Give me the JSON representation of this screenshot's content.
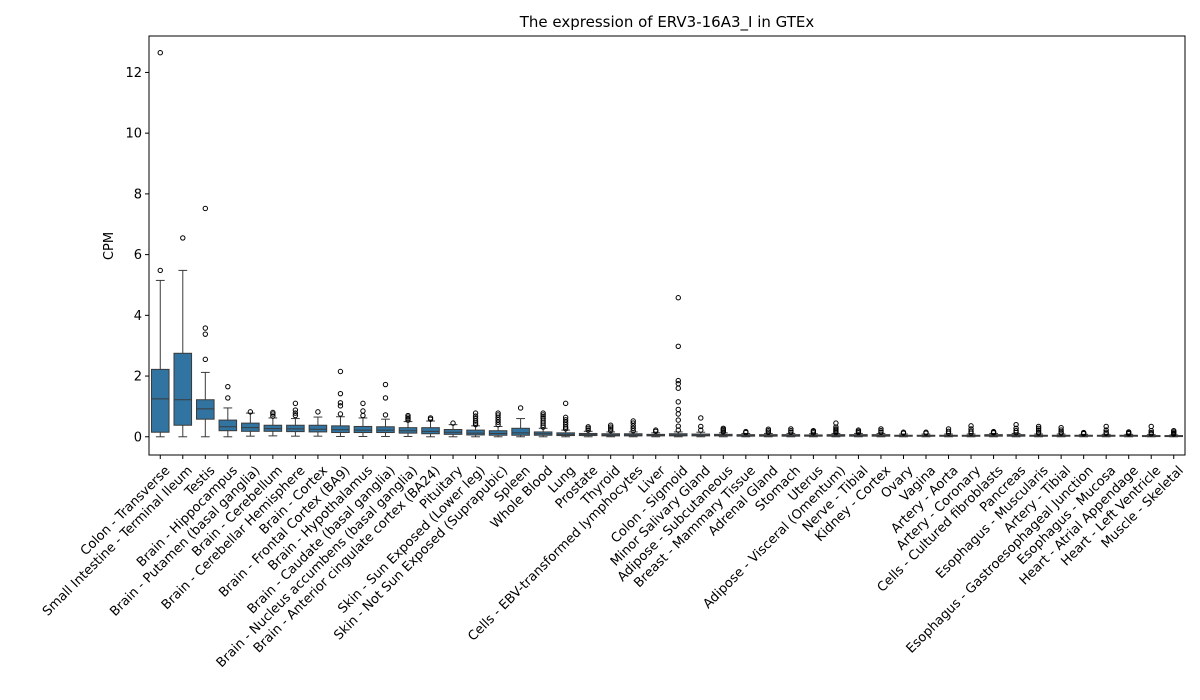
{
  "chart_data": {
    "type": "box",
    "title": "The expression of ERV3-16A3_I in GTEx",
    "xlabel": "",
    "ylabel": "CPM",
    "ylim": [
      -0.6,
      13.2
    ],
    "yticks": [
      0,
      2,
      4,
      6,
      8,
      10,
      12
    ],
    "grid": false,
    "legend": "none",
    "box_color": "#3274a1",
    "line_color": "#3a3a3a",
    "categories": [
      "Colon - Transverse",
      "Small Intestine - Terminal Ileum",
      "Testis",
      "Brain - Hippocampus",
      "Brain - Putamen (basal ganglia)",
      "Brain - Cerebellum",
      "Brain - Cerebellar Hemisphere",
      "Brain - Cortex",
      "Brain - Frontal Cortex (BA9)",
      "Brain - Hypothalamus",
      "Brain - Caudate (basal ganglia)",
      "Brain - Nucleus accumbens (basal ganglia)",
      "Brain - Anterior cingulate cortex (BA24)",
      "Pituitary",
      "Skin - Sun Exposed (Lower leg)",
      "Skin - Not Sun Exposed (Suprapubic)",
      "Spleen",
      "Whole Blood",
      "Lung",
      "Prostate",
      "Thyroid",
      "Cells - EBV-transformed lymphocytes",
      "Liver",
      "Colon - Sigmoid",
      "Minor Salivary Gland",
      "Adipose - Subcutaneous",
      "Breast - Mammary Tissue",
      "Adrenal Gland",
      "Stomach",
      "Uterus",
      "Adipose - Visceral (Omentum)",
      "Nerve - Tibial",
      "Kidney - Cortex",
      "Ovary",
      "Vagina",
      "Artery - Aorta",
      "Artery - Coronary",
      "Cells - Cultured fibroblasts",
      "Pancreas",
      "Esophagus - Muscularis",
      "Artery - Tibial",
      "Esophagus - Gastroesophageal Junction",
      "Esophagus - Mucosa",
      "Heart - Atrial Appendage",
      "Heart - Left Ventricle",
      "Muscle - Skeletal"
    ],
    "boxes": [
      {
        "q1": 0.15,
        "median": 1.25,
        "q3": 2.22,
        "whislo": 0.0,
        "whishi": 5.15,
        "fliers": [
          5.48,
          12.65
        ]
      },
      {
        "q1": 0.38,
        "median": 1.22,
        "q3": 2.75,
        "whislo": 0.0,
        "whishi": 5.48,
        "fliers": [
          6.55
        ]
      },
      {
        "q1": 0.58,
        "median": 0.92,
        "q3": 1.22,
        "whislo": 0.0,
        "whishi": 2.12,
        "fliers": [
          2.55,
          3.38,
          3.58,
          7.52
        ]
      },
      {
        "q1": 0.2,
        "median": 0.33,
        "q3": 0.55,
        "whislo": 0.0,
        "whishi": 0.95,
        "fliers": [
          1.28,
          1.65
        ]
      },
      {
        "q1": 0.18,
        "median": 0.3,
        "q3": 0.45,
        "whislo": 0.02,
        "whishi": 0.78,
        "fliers": [
          0.82
        ]
      },
      {
        "q1": 0.18,
        "median": 0.27,
        "q3": 0.38,
        "whislo": 0.03,
        "whishi": 0.62,
        "fliers": [
          0.68,
          0.75,
          0.8
        ]
      },
      {
        "q1": 0.17,
        "median": 0.26,
        "q3": 0.38,
        "whislo": 0.02,
        "whishi": 0.6,
        "fliers": [
          0.7,
          0.78,
          0.88,
          1.1
        ]
      },
      {
        "q1": 0.16,
        "median": 0.25,
        "q3": 0.38,
        "whislo": 0.02,
        "whishi": 0.65,
        "fliers": [
          0.82
        ]
      },
      {
        "q1": 0.14,
        "median": 0.23,
        "q3": 0.36,
        "whislo": 0.01,
        "whishi": 0.66,
        "fliers": [
          0.75,
          1.02,
          1.12,
          1.42,
          2.15
        ]
      },
      {
        "q1": 0.14,
        "median": 0.22,
        "q3": 0.34,
        "whislo": 0.01,
        "whishi": 0.62,
        "fliers": [
          0.7,
          0.85,
          1.1
        ]
      },
      {
        "q1": 0.14,
        "median": 0.22,
        "q3": 0.33,
        "whislo": 0.01,
        "whishi": 0.58,
        "fliers": [
          0.72,
          1.28,
          1.72
        ]
      },
      {
        "q1": 0.12,
        "median": 0.2,
        "q3": 0.3,
        "whislo": 0.01,
        "whishi": 0.5,
        "fliers": [
          0.55,
          0.6,
          0.65,
          0.7
        ]
      },
      {
        "q1": 0.1,
        "median": 0.18,
        "q3": 0.3,
        "whislo": 0.0,
        "whishi": 0.52,
        "fliers": [
          0.58,
          0.62
        ]
      },
      {
        "q1": 0.08,
        "median": 0.15,
        "q3": 0.24,
        "whislo": 0.0,
        "whishi": 0.4,
        "fliers": [
          0.45
        ]
      },
      {
        "q1": 0.06,
        "median": 0.12,
        "q3": 0.22,
        "whislo": 0.0,
        "whishi": 0.36,
        "fliers": [
          0.4,
          0.45,
          0.52,
          0.6,
          0.68,
          0.78
        ]
      },
      {
        "q1": 0.05,
        "median": 0.11,
        "q3": 0.2,
        "whislo": 0.0,
        "whishi": 0.34,
        "fliers": [
          0.4,
          0.48,
          0.56,
          0.64,
          0.72,
          0.78
        ]
      },
      {
        "q1": 0.05,
        "median": 0.13,
        "q3": 0.28,
        "whislo": 0.0,
        "whishi": 0.6,
        "fliers": [
          0.95
        ]
      },
      {
        "q1": 0.05,
        "median": 0.1,
        "q3": 0.16,
        "whislo": 0.0,
        "whishi": 0.28,
        "fliers": [
          0.32,
          0.38,
          0.45,
          0.52,
          0.6,
          0.66,
          0.72,
          0.78
        ]
      },
      {
        "q1": 0.04,
        "median": 0.08,
        "q3": 0.13,
        "whislo": 0.0,
        "whishi": 0.22,
        "fliers": [
          0.26,
          0.32,
          0.4,
          0.48,
          0.56,
          0.64,
          1.1
        ]
      },
      {
        "q1": 0.04,
        "median": 0.07,
        "q3": 0.11,
        "whislo": 0.0,
        "whishi": 0.18,
        "fliers": [
          0.22,
          0.28,
          0.33
        ]
      },
      {
        "q1": 0.03,
        "median": 0.06,
        "q3": 0.1,
        "whislo": 0.0,
        "whishi": 0.16,
        "fliers": [
          0.2,
          0.26,
          0.32,
          0.38
        ]
      },
      {
        "q1": 0.03,
        "median": 0.06,
        "q3": 0.1,
        "whislo": 0.0,
        "whishi": 0.16,
        "fliers": [
          0.2,
          0.28,
          0.36,
          0.45,
          0.52
        ]
      },
      {
        "q1": 0.03,
        "median": 0.05,
        "q3": 0.08,
        "whislo": 0.0,
        "whishi": 0.13,
        "fliers": [
          0.18,
          0.22
        ]
      },
      {
        "q1": 0.03,
        "median": 0.06,
        "q3": 0.1,
        "whislo": 0.0,
        "whishi": 0.16,
        "fliers": [
          0.22,
          0.35,
          0.55,
          0.75,
          0.9,
          1.15,
          1.6,
          1.75,
          1.85,
          2.98,
          4.58
        ]
      },
      {
        "q1": 0.03,
        "median": 0.05,
        "q3": 0.09,
        "whislo": 0.0,
        "whishi": 0.15,
        "fliers": [
          0.22,
          0.34,
          0.62
        ]
      },
      {
        "q1": 0.03,
        "median": 0.05,
        "q3": 0.08,
        "whislo": 0.0,
        "whishi": 0.13,
        "fliers": [
          0.16,
          0.2,
          0.24,
          0.28
        ]
      },
      {
        "q1": 0.02,
        "median": 0.04,
        "q3": 0.07,
        "whislo": 0.0,
        "whishi": 0.11,
        "fliers": [
          0.14,
          0.17
        ]
      },
      {
        "q1": 0.02,
        "median": 0.04,
        "q3": 0.07,
        "whislo": 0.0,
        "whishi": 0.11,
        "fliers": [
          0.15,
          0.2,
          0.25
        ]
      },
      {
        "q1": 0.02,
        "median": 0.04,
        "q3": 0.07,
        "whislo": 0.0,
        "whishi": 0.11,
        "fliers": [
          0.15,
          0.2,
          0.26
        ]
      },
      {
        "q1": 0.02,
        "median": 0.04,
        "q3": 0.06,
        "whislo": 0.0,
        "whishi": 0.1,
        "fliers": [
          0.13,
          0.17,
          0.2
        ]
      },
      {
        "q1": 0.02,
        "median": 0.04,
        "q3": 0.07,
        "whislo": 0.0,
        "whishi": 0.11,
        "fliers": [
          0.14,
          0.18,
          0.22,
          0.26,
          0.32,
          0.45
        ]
      },
      {
        "q1": 0.02,
        "median": 0.04,
        "q3": 0.07,
        "whislo": 0.0,
        "whishi": 0.11,
        "fliers": [
          0.14,
          0.18,
          0.22
        ]
      },
      {
        "q1": 0.02,
        "median": 0.04,
        "q3": 0.07,
        "whislo": 0.0,
        "whishi": 0.11,
        "fliers": [
          0.15,
          0.2,
          0.26
        ]
      },
      {
        "q1": 0.02,
        "median": 0.03,
        "q3": 0.05,
        "whislo": 0.0,
        "whishi": 0.09,
        "fliers": [
          0.12,
          0.15
        ]
      },
      {
        "q1": 0.02,
        "median": 0.03,
        "q3": 0.05,
        "whislo": 0.0,
        "whishi": 0.09,
        "fliers": [
          0.12,
          0.15
        ]
      },
      {
        "q1": 0.02,
        "median": 0.03,
        "q3": 0.05,
        "whislo": 0.0,
        "whishi": 0.09,
        "fliers": [
          0.12,
          0.18,
          0.26
        ]
      },
      {
        "q1": 0.02,
        "median": 0.03,
        "q3": 0.05,
        "whislo": 0.0,
        "whishi": 0.09,
        "fliers": [
          0.12,
          0.18,
          0.26,
          0.36
        ]
      },
      {
        "q1": 0.02,
        "median": 0.04,
        "q3": 0.07,
        "whislo": 0.0,
        "whishi": 0.11,
        "fliers": [
          0.13,
          0.15,
          0.17
        ]
      },
      {
        "q1": 0.02,
        "median": 0.04,
        "q3": 0.07,
        "whislo": 0.0,
        "whishi": 0.11,
        "fliers": [
          0.14,
          0.2,
          0.28,
          0.4
        ]
      },
      {
        "q1": 0.02,
        "median": 0.03,
        "q3": 0.05,
        "whislo": 0.0,
        "whishi": 0.09,
        "fliers": [
          0.12,
          0.16,
          0.22,
          0.28,
          0.34
        ]
      },
      {
        "q1": 0.02,
        "median": 0.03,
        "q3": 0.05,
        "whislo": 0.0,
        "whishi": 0.09,
        "fliers": [
          0.12,
          0.16,
          0.22,
          0.3
        ]
      },
      {
        "q1": 0.02,
        "median": 0.03,
        "q3": 0.05,
        "whislo": 0.0,
        "whishi": 0.08,
        "fliers": [
          0.1,
          0.12,
          0.14
        ]
      },
      {
        "q1": 0.02,
        "median": 0.03,
        "q3": 0.05,
        "whislo": 0.0,
        "whishi": 0.08,
        "fliers": [
          0.11,
          0.15,
          0.22,
          0.34
        ]
      },
      {
        "q1": 0.02,
        "median": 0.03,
        "q3": 0.05,
        "whislo": 0.0,
        "whishi": 0.08,
        "fliers": [
          0.1,
          0.13,
          0.16
        ]
      },
      {
        "q1": 0.01,
        "median": 0.02,
        "q3": 0.04,
        "whislo": 0.0,
        "whishi": 0.07,
        "fliers": [
          0.1,
          0.14,
          0.2,
          0.34
        ]
      },
      {
        "q1": 0.01,
        "median": 0.02,
        "q3": 0.04,
        "whislo": 0.0,
        "whishi": 0.06,
        "fliers": [
          0.09,
          0.12,
          0.16,
          0.2
        ]
      }
    ]
  }
}
